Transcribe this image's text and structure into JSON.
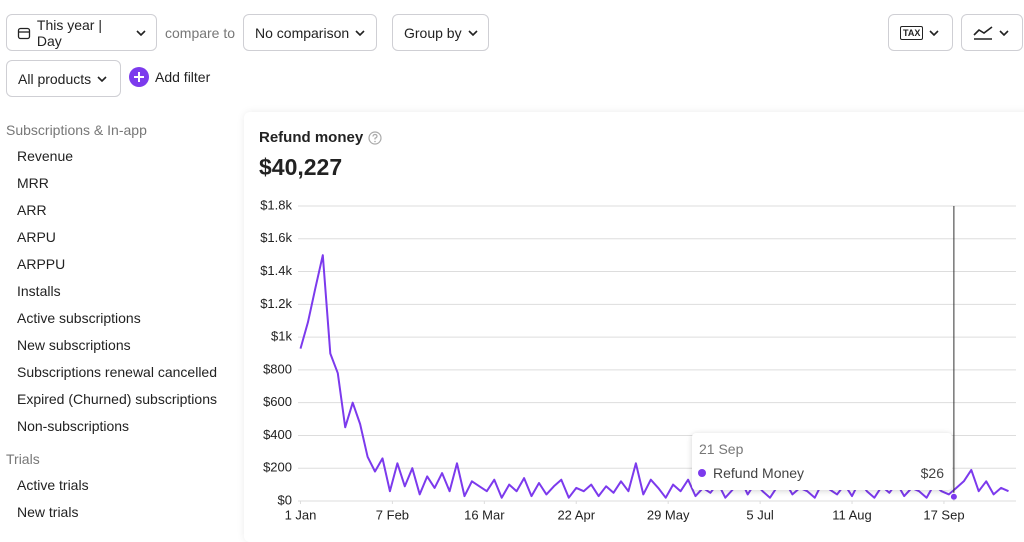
{
  "toolbar": {
    "period": "This year | Day",
    "compare_label": "compare to",
    "comparison": "No comparison",
    "group_by": "Group by",
    "tax_icon": "TAX",
    "products": "All products",
    "add_filter": "Add filter"
  },
  "sidebar": [
    {
      "title": "Subscriptions & In-app",
      "items": [
        "Revenue",
        "MRR",
        "ARR",
        "ARPU",
        "ARPPU",
        "Installs",
        "Active subscriptions",
        "New subscriptions",
        "Subscriptions renewal cancelled",
        "Expired (Churned) subscriptions",
        "Non-subscriptions"
      ]
    },
    {
      "title": "Trials",
      "items": [
        "Active trials",
        "New trials"
      ]
    }
  ],
  "chart_data": {
    "type": "line",
    "title": "Refund money",
    "total": "$40,227",
    "color": "#7c3aed",
    "grid": true,
    "x": [
      0,
      3,
      6,
      9,
      12,
      15,
      18,
      21,
      24,
      27,
      30,
      33,
      36,
      39,
      42,
      45,
      48,
      51,
      54,
      57,
      60,
      63,
      66,
      69,
      72,
      75,
      78,
      81,
      84,
      87,
      90,
      93,
      96,
      99,
      102,
      105,
      108,
      111,
      114,
      117,
      120,
      123,
      126,
      129,
      132,
      135,
      138,
      141,
      144,
      147,
      150,
      153,
      156,
      159,
      162,
      165,
      168,
      171,
      174,
      177,
      180,
      183,
      186,
      189,
      192,
      195,
      198,
      201,
      204,
      207,
      210,
      213,
      216,
      219,
      222,
      225,
      228,
      231,
      234,
      237,
      240,
      243,
      246,
      249,
      252,
      255,
      258,
      261,
      264,
      267,
      270,
      273,
      276,
      279,
      282,
      285
    ],
    "values": [
      930,
      1090,
      1300,
      1500,
      900,
      780,
      450,
      600,
      470,
      270,
      180,
      260,
      60,
      230,
      90,
      200,
      40,
      150,
      80,
      170,
      60,
      230,
      30,
      120,
      90,
      60,
      130,
      20,
      100,
      60,
      140,
      30,
      110,
      40,
      90,
      130,
      20,
      80,
      60,
      100,
      30,
      90,
      50,
      120,
      60,
      230,
      40,
      130,
      80,
      20,
      100,
      60,
      130,
      30,
      80,
      50,
      110,
      20,
      70,
      140,
      40,
      110,
      60,
      20,
      90,
      120,
      40,
      80,
      60,
      20,
      110,
      70,
      40,
      100,
      30,
      120,
      60,
      20,
      90,
      50,
      110,
      30,
      80,
      60,
      20,
      100,
      60,
      40,
      80,
      120,
      190,
      60,
      120,
      40,
      80,
      60
    ],
    "xlim": [
      -1,
      288
    ],
    "xticks": [
      {
        "value": 0,
        "label": "1 Jan"
      },
      {
        "value": 37,
        "label": "7 Feb"
      },
      {
        "value": 74,
        "label": "16 Mar"
      },
      {
        "value": 111,
        "label": "22 Apr"
      },
      {
        "value": 148,
        "label": "29 May"
      },
      {
        "value": 185,
        "label": "5 Jul"
      },
      {
        "value": 222,
        "label": "11 Aug"
      },
      {
        "value": 259,
        "label": "17 Sep"
      }
    ],
    "ylim": [
      0,
      1800
    ],
    "yticks": [
      {
        "value": 0,
        "label": "$0"
      },
      {
        "value": 200,
        "label": "$200"
      },
      {
        "value": 400,
        "label": "$400"
      },
      {
        "value": 600,
        "label": "$600"
      },
      {
        "value": 800,
        "label": "$800"
      },
      {
        "value": 1000,
        "label": "$1k"
      },
      {
        "value": 1200,
        "label": "$1.2k"
      },
      {
        "value": 1400,
        "label": "$1.4k"
      },
      {
        "value": 1600,
        "label": "$1.6k"
      },
      {
        "value": 1800,
        "label": "$1.8k"
      }
    ],
    "tooltip": {
      "x": 263,
      "label": "21 Sep",
      "name": "Refund Money",
      "value": 26,
      "value_label": "$26"
    }
  }
}
